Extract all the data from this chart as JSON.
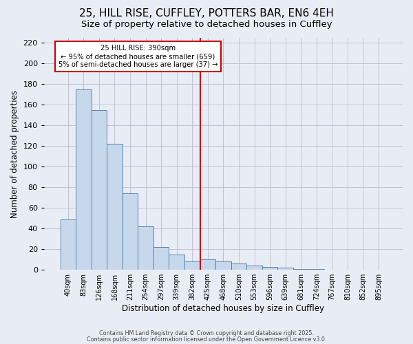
{
  "title": "25, HILL RISE, CUFFLEY, POTTERS BAR, EN6 4EH",
  "subtitle": "Size of property relative to detached houses in Cuffley",
  "xlabel": "Distribution of detached houses by size in Cuffley",
  "ylabel": "Number of detached properties",
  "bar_color": "#c8d8ec",
  "bar_edge_color": "#5580a8",
  "categories": [
    "40sqm",
    "83sqm",
    "126sqm",
    "168sqm",
    "211sqm",
    "254sqm",
    "297sqm",
    "339sqm",
    "382sqm",
    "425sqm",
    "468sqm",
    "510sqm",
    "553sqm",
    "596sqm",
    "639sqm",
    "681sqm",
    "724sqm",
    "767sqm",
    "810sqm",
    "852sqm",
    "895sqm"
  ],
  "values": [
    49,
    175,
    155,
    122,
    74,
    42,
    22,
    15,
    8,
    10,
    8,
    6,
    4,
    3,
    2,
    1,
    1,
    0,
    0,
    0,
    0
  ],
  "ylim": [
    0,
    225
  ],
  "yticks": [
    0,
    20,
    40,
    60,
    80,
    100,
    120,
    140,
    160,
    180,
    200,
    220
  ],
  "vline_x": 8.5,
  "vline_color": "#cc0000",
  "annotation_line1": "25 HILL RISE: 390sqm",
  "annotation_line2": "← 95% of detached houses are smaller (659)",
  "annotation_line3": "5% of semi-detached houses are larger (37) →",
  "annotation_box_color": "#ffffff",
  "annotation_border_color": "#cc0000",
  "footer1": "Contains HM Land Registry data © Crown copyright and database right 2025.",
  "footer2": "Contains public sector information licensed under the Open Government Licence v3.0.",
  "background_color": "#e8edf5",
  "plot_background": "#e8edf5",
  "title_fontsize": 11,
  "subtitle_fontsize": 9.5
}
